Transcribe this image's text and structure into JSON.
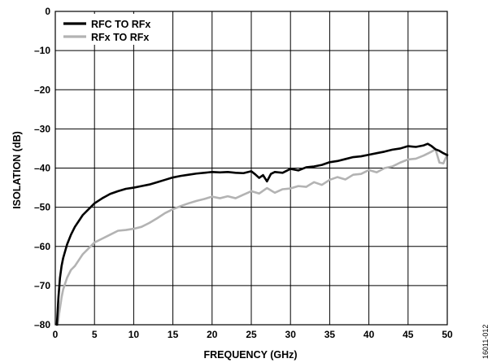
{
  "chart_data": {
    "type": "line",
    "xlabel": "FREQUENCY (GHz)",
    "ylabel": "ISOLATION (dB)",
    "xlim": [
      0,
      50
    ],
    "ylim": [
      -80,
      0
    ],
    "x_ticks": [
      "0",
      "5",
      "10",
      "15",
      "20",
      "25",
      "30",
      "35",
      "40",
      "45",
      "50"
    ],
    "y_ticks": [
      "0",
      "–10",
      "–20",
      "–30",
      "–40",
      "–50",
      "–60",
      "–70",
      "–80"
    ],
    "grid": true,
    "legend_position": "top-left",
    "series": [
      {
        "name": "RFC TO RFx",
        "color": "#000000",
        "x": [
          0.2,
          0.4,
          0.6,
          0.8,
          1,
          1.5,
          2,
          2.5,
          3,
          3.5,
          4,
          5,
          6,
          7,
          8,
          9,
          10,
          11,
          12,
          13,
          14,
          15,
          16,
          17,
          18,
          19,
          20,
          21,
          22,
          23,
          24,
          25,
          25.5,
          26,
          26.5,
          27,
          27.5,
          28,
          29,
          30,
          31,
          32,
          33,
          34,
          35,
          36,
          37,
          38,
          39,
          40,
          41,
          42,
          43,
          44,
          45,
          46,
          47,
          47.5,
          48,
          48.5,
          49,
          49.5,
          50
        ],
        "y": [
          -80,
          -73,
          -68,
          -65,
          -63,
          -59.5,
          -57,
          -55,
          -53.5,
          -52,
          -51,
          -49,
          -47.7,
          -46.6,
          -45.9,
          -45.3,
          -45,
          -44.6,
          -44.2,
          -43.6,
          -43,
          -42.4,
          -42,
          -41.7,
          -41.4,
          -41.2,
          -41,
          -41.1,
          -41,
          -41.2,
          -41.3,
          -40.8,
          -41.6,
          -42.5,
          -41.8,
          -43.4,
          -41.5,
          -41,
          -41.2,
          -40.2,
          -40.6,
          -39.8,
          -39.6,
          -39.2,
          -38.5,
          -38.2,
          -37.7,
          -37.2,
          -37,
          -36.6,
          -36.2,
          -35.8,
          -35.3,
          -35,
          -34.4,
          -34.6,
          -34.2,
          -33.8,
          -34.4,
          -35.2,
          -35.6,
          -36.2,
          -36.7
        ]
      },
      {
        "name": "RFx TO RFx",
        "color": "#b3b3b3",
        "x": [
          0.3,
          0.5,
          0.8,
          1,
          1.5,
          2,
          2.5,
          3,
          3.5,
          4,
          5,
          6,
          7,
          8,
          9,
          10,
          11,
          12,
          13,
          14,
          15,
          16,
          17,
          18,
          19,
          20,
          21,
          22,
          23,
          24,
          25,
          26,
          27,
          28,
          29,
          30,
          31,
          32,
          33,
          34,
          35,
          36,
          37,
          38,
          39,
          40,
          41,
          42,
          43,
          44,
          45,
          46,
          47,
          48,
          48.5,
          49,
          49.5,
          50
        ],
        "y": [
          -80,
          -77,
          -73,
          -71,
          -68,
          -66,
          -65,
          -63.5,
          -62,
          -61,
          -59,
          -58,
          -57,
          -56,
          -55.8,
          -55.5,
          -55,
          -54,
          -52.8,
          -51.5,
          -50.5,
          -49.7,
          -49,
          -48.4,
          -47.9,
          -47.3,
          -47.7,
          -47.2,
          -47.7,
          -46.8,
          -45.9,
          -46.5,
          -45.1,
          -46.3,
          -45.4,
          -45.2,
          -44.6,
          -44.8,
          -43.6,
          -44.3,
          -43,
          -42.3,
          -42.9,
          -41.7,
          -41.5,
          -40.5,
          -41.1,
          -40,
          -39.6,
          -38.6,
          -37.8,
          -37.6,
          -36.8,
          -35.8,
          -35.2,
          -38.6,
          -38.8,
          -36.5
        ]
      }
    ]
  },
  "figure_code": "16011-012"
}
